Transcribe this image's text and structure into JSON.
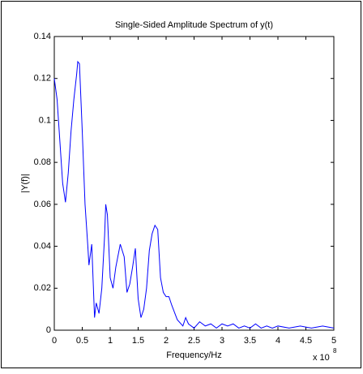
{
  "chart_data": {
    "type": "line",
    "title": "Single-Sided Amplitude Spectrum of y(t)",
    "x_label": "Frequency/Hz",
    "y_label": "|Y(f)|",
    "x_multiplier": {
      "base": "x 10",
      "exponent": 8
    },
    "xlim": [
      0,
      5
    ],
    "xticks": [
      0,
      0.5,
      1,
      1.5,
      2,
      2.5,
      3,
      3.5,
      4,
      4.5,
      5
    ],
    "ylim": [
      0,
      0.14
    ],
    "yticks": [
      0,
      0.02,
      0.04,
      0.06,
      0.08,
      0.1,
      0.12,
      0.14
    ],
    "grid": false,
    "series": [
      {
        "color": "#0000ff",
        "x": [
          0,
          0.05,
          0.1,
          0.15,
          0.2,
          0.25,
          0.3,
          0.35,
          0.4,
          0.42,
          0.45,
          0.5,
          0.55,
          0.6,
          0.62,
          0.67,
          0.7,
          0.72,
          0.75,
          0.8,
          0.85,
          0.9,
          0.92,
          0.95,
          1.0,
          1.05,
          1.1,
          1.18,
          1.25,
          1.3,
          1.35,
          1.4,
          1.45,
          1.5,
          1.55,
          1.6,
          1.65,
          1.7,
          1.75,
          1.8,
          1.85,
          1.9,
          1.95,
          2.0,
          2.05,
          2.1,
          2.2,
          2.3,
          2.35,
          2.4,
          2.5,
          2.6,
          2.7,
          2.8,
          2.9,
          3.0,
          3.1,
          3.2,
          3.3,
          3.4,
          3.5,
          3.6,
          3.7,
          3.8,
          3.9,
          4.0,
          4.2,
          4.4,
          4.6,
          4.8,
          5.0
        ],
        "values": [
          0.12,
          0.11,
          0.09,
          0.07,
          0.061,
          0.075,
          0.095,
          0.11,
          0.122,
          0.128,
          0.127,
          0.095,
          0.06,
          0.04,
          0.031,
          0.041,
          0.02,
          0.006,
          0.013,
          0.008,
          0.02,
          0.045,
          0.06,
          0.055,
          0.025,
          0.02,
          0.03,
          0.041,
          0.035,
          0.018,
          0.022,
          0.03,
          0.039,
          0.015,
          0.006,
          0.01,
          0.02,
          0.038,
          0.046,
          0.05,
          0.048,
          0.025,
          0.018,
          0.016,
          0.016,
          0.012,
          0.005,
          0.002,
          0.006,
          0.003,
          0.001,
          0.004,
          0.002,
          0.003,
          0.001,
          0.003,
          0.002,
          0.003,
          0.001,
          0.002,
          0.001,
          0.003,
          0.001,
          0.002,
          0.001,
          0.002,
          0.001,
          0.002,
          0.001,
          0.002,
          0.001
        ]
      }
    ]
  }
}
